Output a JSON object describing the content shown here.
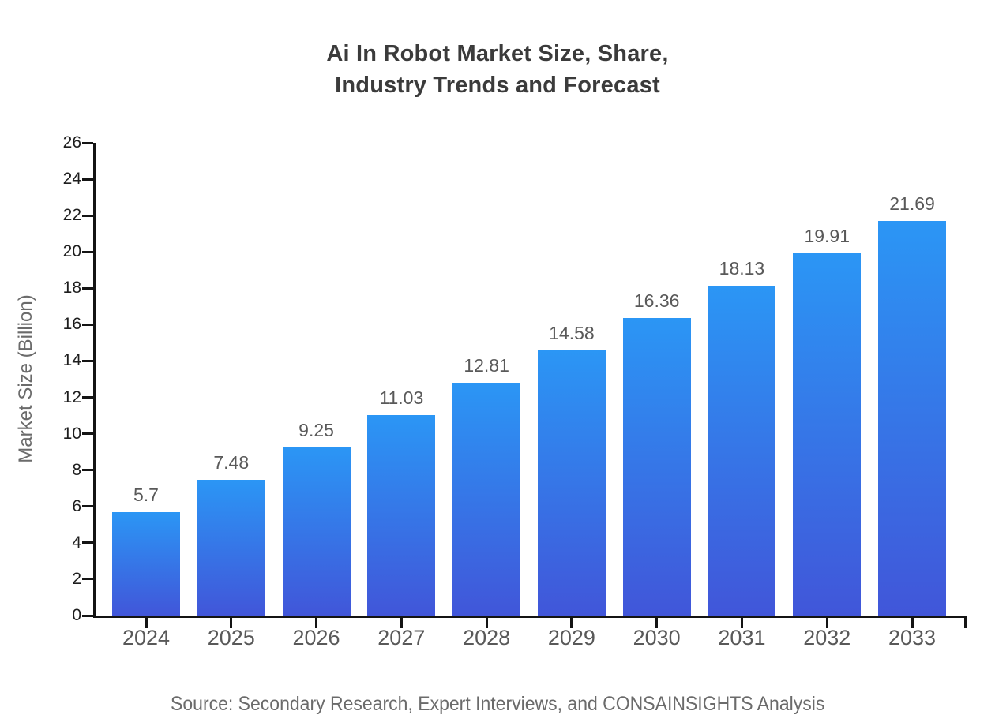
{
  "title": {
    "line1": "Ai In Robot Market Size, Share,",
    "line2": "Industry Trends and Forecast"
  },
  "source": {
    "text": "Source: Secondary Research, Expert Interviews, and CONSAINSIGHTS Analysis"
  },
  "colors": {
    "background": "#ffffff",
    "bar_gradient_top": "#2b96f5",
    "bar_gradient_bottom": "#4156d9",
    "axis": "#141414",
    "y_tick_label": "#1e1e1e",
    "x_tick_label": "#595959",
    "value_label": "#595959",
    "axis_title": "#6b6b6b",
    "title": "#3b3b3b",
    "source": "#6b6b6b"
  },
  "chart_data": {
    "type": "bar",
    "title": "Ai In Robot Market Size, Share, Industry Trends and Forecast",
    "categories": [
      "2024",
      "2025",
      "2026",
      "2027",
      "2028",
      "2029",
      "2030",
      "2031",
      "2032",
      "2033"
    ],
    "values": [
      5.7,
      7.48,
      9.25,
      11.03,
      12.81,
      14.58,
      16.36,
      18.13,
      19.91,
      21.69
    ],
    "value_labels": [
      "5.7",
      "7.48",
      "9.25",
      "11.03",
      "12.81",
      "14.58",
      "16.36",
      "18.13",
      "19.91",
      "21.69"
    ],
    "xlabel": "",
    "ylabel": "Market Size (Billion)",
    "ylim": [
      0,
      26
    ],
    "ytick_step": 2,
    "yticks": [
      0,
      2,
      4,
      6,
      8,
      10,
      12,
      14,
      16,
      18,
      20,
      22,
      24,
      26
    ],
    "grid": false,
    "legend": "none",
    "value_labels_shown": true
  }
}
